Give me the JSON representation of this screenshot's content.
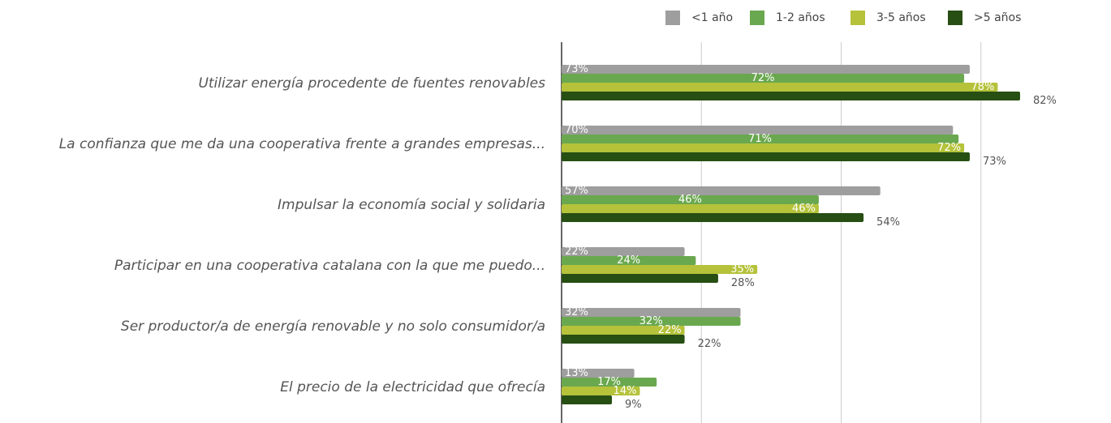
{
  "chart_data": {
    "type": "bar",
    "orientation": "horizontal",
    "categories": [
      "Utilizar energía procedente de fuentes renovables",
      "La confianza que me da una cooperativa frente a grandes empresas...",
      "Impulsar la economía social y solidaria",
      "Participar en una cooperativa catalana con la que me puedo...",
      "Ser productor/a de energía renovable y no solo consumidor/a",
      "El precio de la electricidad que ofrecía"
    ],
    "series": [
      {
        "name": "<1 año",
        "color": "#9e9e9e",
        "values": [
          73,
          70,
          57,
          22,
          32,
          13
        ],
        "value_labels": [
          "73%",
          "70%",
          "57%",
          "22%",
          "32%",
          "13%"
        ]
      },
      {
        "name": "1-2 años",
        "color": "#6aa84f",
        "values": [
          72,
          71,
          46,
          24,
          32,
          17
        ],
        "value_labels": [
          "72%",
          "71%",
          "46%",
          "24%",
          "32%",
          "17%"
        ]
      },
      {
        "name": "3-5 años",
        "color": "#b5c23a",
        "values": [
          78,
          72,
          46,
          35,
          22,
          14
        ],
        "value_labels": [
          "78%",
          "72%",
          "46%",
          "35%",
          "22%",
          "14%"
        ]
      },
      {
        "name": ">5 años",
        "color": "#274e13",
        "values": [
          82,
          73,
          54,
          28,
          22,
          9
        ],
        "value_labels": [
          "82%",
          "73%",
          "54%",
          "28%",
          "22%",
          "9%"
        ]
      }
    ],
    "xlim": [
      0,
      100
    ],
    "xticks": [
      0,
      25,
      50,
      75
    ],
    "grid": true,
    "legend": "top"
  }
}
